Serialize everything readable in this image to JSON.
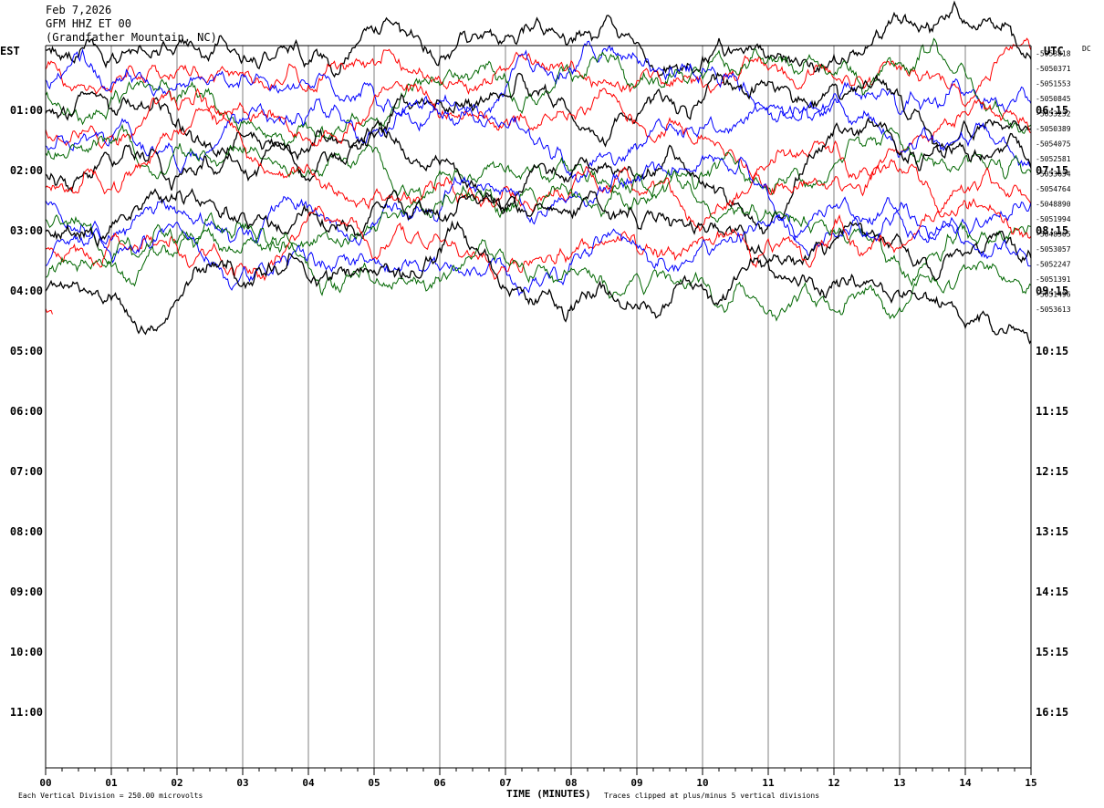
{
  "header": {
    "date": "Feb 7,2026",
    "station": "GFM HHZ ET 00",
    "location": "(Grandfather Mountain, NC)"
  },
  "left_tz": "EST",
  "right_tz": "UTC",
  "dc_label": "DC",
  "footer": {
    "scale_note": "Each Vertical Division =  250.00 microvolts",
    "x_title": "TIME (MINUTES)",
    "clip_note": "Traces clipped at plus/minus 5 vertical divisions"
  },
  "colors": {
    "black": "#000000",
    "red": "#ff0000",
    "blue": "#0000ff",
    "green": "#006600",
    "grid": "#808080"
  },
  "chart_data": {
    "type": "line",
    "x_ticks": [
      "00",
      "01",
      "02",
      "03",
      "04",
      "05",
      "06",
      "07",
      "08",
      "09",
      "10",
      "11",
      "12",
      "13",
      "14",
      "15"
    ],
    "xlim": [
      0,
      15
    ],
    "rows_per_hour": 4,
    "left_hour_labels": [
      "01:00",
      "02:00",
      "03:00",
      "04:00",
      "05:00",
      "06:00",
      "07:00",
      "08:00",
      "09:00",
      "10:00",
      "11:00"
    ],
    "right_hour_labels": [
      "06:15",
      "07:15",
      "08:15",
      "09:15",
      "10:15",
      "11:15",
      "12:15",
      "13:15",
      "14:15",
      "15:15",
      "16:15"
    ],
    "dc_offsets": [
      "-5053818",
      "-5050371",
      "-5051553",
      "-5050845",
      "-5053232",
      "-5050389",
      "-5054075",
      "-5052581",
      "-5053634",
      "-5054764",
      "-5048890",
      "-5051994",
      "-5048365",
      "-5053057",
      "-5052247",
      "-5051391",
      "-5051496",
      "-5053613"
    ],
    "trace_color_cycle": [
      "black",
      "red",
      "blue",
      "green"
    ],
    "clip_divisions": 5,
    "microvolts_per_division": 250.0
  }
}
